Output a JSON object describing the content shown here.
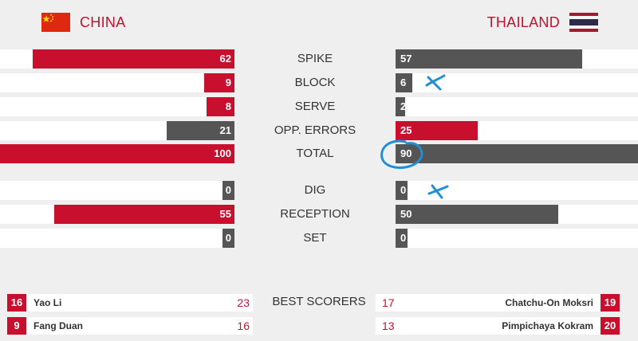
{
  "colors": {
    "accent": "#c8102e",
    "dark_bar": "#555555",
    "annotation": "#1d8fd6"
  },
  "teams": {
    "home": {
      "name": "CHINA",
      "flag_icon": "china-flag-icon"
    },
    "away": {
      "name": "THAILAND",
      "flag_icon": "thailand-flag-icon"
    }
  },
  "stats": [
    {
      "label": "SPIKE",
      "home": "62",
      "away": "57",
      "home_fraction": 0.86,
      "away_fraction": 0.77,
      "home_wins": true
    },
    {
      "label": "BLOCK",
      "home": "9",
      "away": "6",
      "home_fraction": 0.13,
      "away_fraction": 0.07,
      "home_wins": true
    },
    {
      "label": "SERVE",
      "home": "8",
      "away": "2",
      "home_fraction": 0.12,
      "away_fraction": 0.04,
      "home_wins": true
    },
    {
      "label": "OPP. ERRORS",
      "home": "21",
      "away": "25",
      "home_fraction": 0.29,
      "away_fraction": 0.34,
      "home_wins": false
    },
    {
      "label": "TOTAL",
      "home": "100",
      "away": "90",
      "home_fraction": 1.0,
      "away_fraction": 1.0,
      "home_wins": true
    },
    {
      "label": "DIG",
      "home": "0",
      "away": "0",
      "home_fraction": 0.05,
      "away_fraction": 0.05,
      "home_wins": null
    },
    {
      "label": "RECEPTION",
      "home": "55",
      "away": "50",
      "home_fraction": 0.77,
      "away_fraction": 0.67,
      "home_wins": true
    },
    {
      "label": "SET",
      "home": "0",
      "away": "0",
      "home_fraction": 0.05,
      "away_fraction": 0.05,
      "home_wins": null
    }
  ],
  "best_scorers": {
    "title": "BEST SCORERS",
    "home": [
      {
        "number": "16",
        "name": "Yao Li",
        "points": "23"
      },
      {
        "number": "9",
        "name": "Fang Duan",
        "points": "16"
      }
    ],
    "away": [
      {
        "number": "19",
        "name": "Chatchu-On Moksri",
        "points": "17"
      },
      {
        "number": "20",
        "name": "Pimpichaya Kokram",
        "points": "13"
      }
    ]
  }
}
